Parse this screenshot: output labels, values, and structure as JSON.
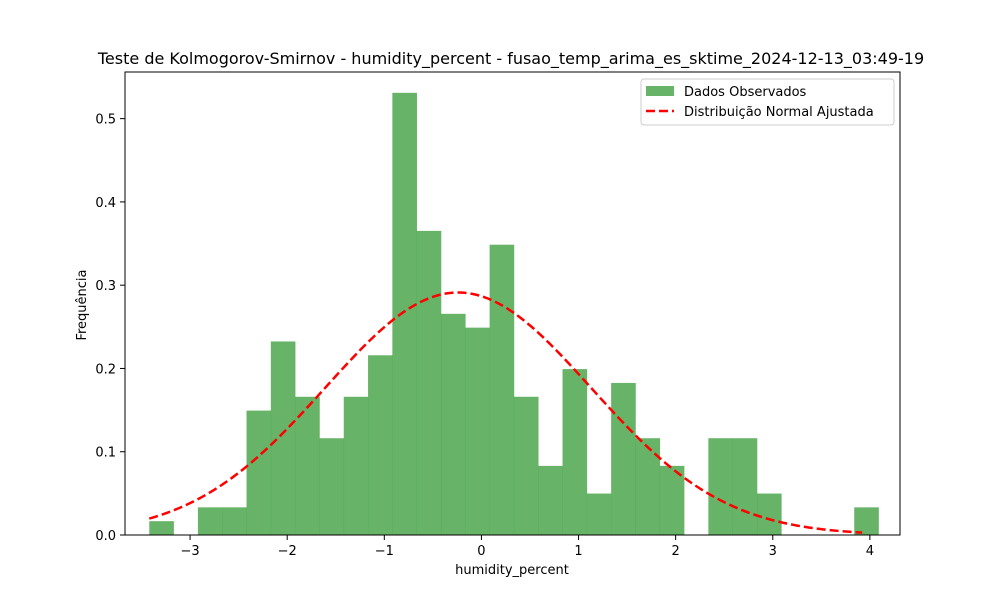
{
  "chart_data": {
    "type": "bar",
    "title": "Teste de Kolmogorov-Smirnov - humidity_percent - fusao_temp_arima_es_sktime_2024-12-13_03:49-19",
    "xlabel": "humidity_percent",
    "ylabel": "Frequência",
    "xlim": [
      -3.67,
      4.31
    ],
    "ylim": [
      0,
      0.556
    ],
    "xticks": [
      -3,
      -2,
      -1,
      0,
      1,
      2,
      3,
      4
    ],
    "xtick_labels": [
      "−3",
      "−2",
      "−1",
      "0",
      "1",
      "2",
      "3",
      "4"
    ],
    "yticks": [
      0.0,
      0.1,
      0.2,
      0.3,
      0.4,
      0.5
    ],
    "ytick_labels": [
      "0.0",
      "0.1",
      "0.2",
      "0.3",
      "0.4",
      "0.5"
    ],
    "legend_position": "top-right",
    "grid": false,
    "series": [
      {
        "name": "Dados Observados",
        "kind": "histogram",
        "color": "#4ca64c",
        "opacity": 0.85,
        "bin_start": -3.42,
        "bin_width": 0.2503,
        "values": [
          0.0166,
          0.0,
          0.0332,
          0.0332,
          0.1494,
          0.2324,
          0.166,
          0.1162,
          0.166,
          0.2158,
          0.531,
          0.3652,
          0.2656,
          0.249,
          0.3486,
          0.166,
          0.083,
          0.1992,
          0.0498,
          0.1826,
          0.1162,
          0.083,
          0.0,
          0.1162,
          0.1162,
          0.0498,
          0.0,
          0.0,
          0.0,
          0.0332
        ]
      },
      {
        "name": "Distribuição Normal Ajustada",
        "kind": "line",
        "color": "#ff0000",
        "style": "dashed",
        "mean": -0.24,
        "std": 1.37,
        "x_range": [
          -3.42,
          3.92
        ]
      }
    ]
  }
}
